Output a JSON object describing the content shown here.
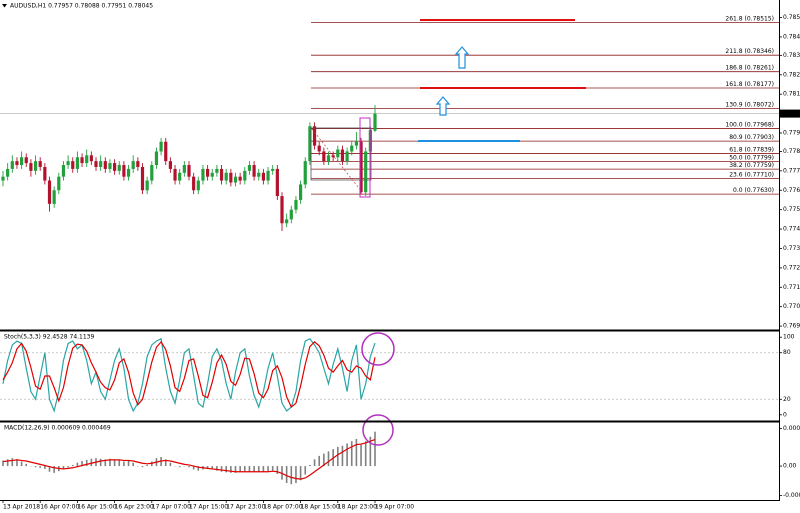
{
  "chart_data": [
    {
      "type": "candlestick",
      "title": "AUDUSD,H1  0.77957 0.78088 0.77951 0.78045",
      "categories": [
        "13 Apr 2018",
        null,
        null,
        null,
        null,
        null,
        null,
        null,
        "16 Apr 07:00",
        null,
        null,
        null,
        null,
        null,
        null,
        null,
        "16 Apr 15:00",
        null,
        null,
        null,
        null,
        null,
        null,
        null,
        "16 Apr 23:00",
        null,
        null,
        null,
        null,
        null,
        null,
        null,
        "17 Apr 07:00",
        null,
        null,
        null,
        null,
        null,
        null,
        null,
        "17 Apr 15:00",
        null,
        null,
        null,
        null,
        null,
        null,
        null,
        "17 Apr 23:00",
        null,
        null,
        null,
        null,
        null,
        null,
        null,
        "18 Apr 07:00",
        null,
        null,
        null,
        null,
        null,
        null,
        null,
        "18 Apr 15:00",
        null,
        null,
        null,
        null,
        null,
        null,
        null,
        "18 Apr 23:00",
        null,
        null,
        null,
        null,
        null,
        null,
        null,
        "19 Apr 07:00"
      ],
      "candles": [
        [
          0.777,
          0.7775,
          0.7767,
          0.7772
        ],
        [
          0.7772,
          0.7779,
          0.777,
          0.7776
        ],
        [
          0.7776,
          0.7783,
          0.7774,
          0.778
        ],
        [
          0.778,
          0.7782,
          0.7776,
          0.7778
        ],
        [
          0.7778,
          0.7785,
          0.7776,
          0.7782
        ],
        [
          0.7782,
          0.7784,
          0.7777,
          0.7779
        ],
        [
          0.7779,
          0.7781,
          0.7772,
          0.7775
        ],
        [
          0.7775,
          0.7783,
          0.7773,
          0.778
        ],
        [
          0.778,
          0.7782,
          0.7775,
          0.7777
        ],
        [
          0.7777,
          0.7779,
          0.7768,
          0.777
        ],
        [
          0.777,
          0.7772,
          0.7754,
          0.7758
        ],
        [
          0.7758,
          0.7767,
          0.7756,
          0.7765
        ],
        [
          0.7765,
          0.7774,
          0.7763,
          0.7772
        ],
        [
          0.7772,
          0.778,
          0.777,
          0.7778
        ],
        [
          0.7778,
          0.7783,
          0.7776,
          0.778
        ],
        [
          0.778,
          0.7782,
          0.7774,
          0.7776
        ],
        [
          0.7776,
          0.7785,
          0.7774,
          0.7782
        ],
        [
          0.7782,
          0.7784,
          0.7777,
          0.7779
        ],
        [
          0.7779,
          0.7786,
          0.7777,
          0.7783
        ],
        [
          0.7783,
          0.7785,
          0.7778,
          0.778
        ],
        [
          0.778,
          0.7782,
          0.7775,
          0.7777
        ],
        [
          0.7777,
          0.7783,
          0.7775,
          0.778
        ],
        [
          0.778,
          0.7782,
          0.7774,
          0.7776
        ],
        [
          0.7776,
          0.7781,
          0.7774,
          0.7779
        ],
        [
          0.7779,
          0.7781,
          0.7773,
          0.7775
        ],
        [
          0.7775,
          0.778,
          0.7773,
          0.7778
        ],
        [
          0.7778,
          0.778,
          0.777,
          0.7772
        ],
        [
          0.7772,
          0.7778,
          0.777,
          0.7776
        ],
        [
          0.7776,
          0.7783,
          0.7774,
          0.778
        ],
        [
          0.778,
          0.7782,
          0.7775,
          0.7777
        ],
        [
          0.7777,
          0.7779,
          0.7763,
          0.7765
        ],
        [
          0.7765,
          0.7772,
          0.7763,
          0.777
        ],
        [
          0.777,
          0.778,
          0.7768,
          0.7778
        ],
        [
          0.7778,
          0.7787,
          0.7776,
          0.7785
        ],
        [
          0.7785,
          0.7792,
          0.7783,
          0.779
        ],
        [
          0.779,
          0.7792,
          0.7778,
          0.778
        ],
        [
          0.778,
          0.7782,
          0.7774,
          0.7776
        ],
        [
          0.7776,
          0.7778,
          0.7768,
          0.777
        ],
        [
          0.777,
          0.7776,
          0.7768,
          0.7774
        ],
        [
          0.7774,
          0.778,
          0.7772,
          0.7778
        ],
        [
          0.7778,
          0.778,
          0.777,
          0.7772
        ],
        [
          0.7772,
          0.7774,
          0.7763,
          0.7765
        ],
        [
          0.7765,
          0.7772,
          0.7763,
          0.777
        ],
        [
          0.777,
          0.7778,
          0.7768,
          0.7776
        ],
        [
          0.7776,
          0.7778,
          0.777,
          0.7772
        ],
        [
          0.7772,
          0.7776,
          0.777,
          0.7774
        ],
        [
          0.7774,
          0.7778,
          0.7772,
          0.7776
        ],
        [
          0.7776,
          0.7778,
          0.7768,
          0.777
        ],
        [
          0.777,
          0.7776,
          0.7768,
          0.7774
        ],
        [
          0.7774,
          0.7776,
          0.7767,
          0.7769
        ],
        [
          0.7769,
          0.7774,
          0.7767,
          0.7772
        ],
        [
          0.7772,
          0.7774,
          0.7768,
          0.777
        ],
        [
          0.777,
          0.7777,
          0.7768,
          0.7775
        ],
        [
          0.7775,
          0.778,
          0.7773,
          0.7778
        ],
        [
          0.7778,
          0.778,
          0.777,
          0.7772
        ],
        [
          0.7772,
          0.7776,
          0.777,
          0.7774
        ],
        [
          0.7774,
          0.7776,
          0.7768,
          0.777
        ],
        [
          0.777,
          0.7777,
          0.7768,
          0.7775
        ],
        [
          0.7775,
          0.7778,
          0.7773,
          0.7776
        ],
        [
          0.7776,
          0.7778,
          0.776,
          0.7762
        ],
        [
          0.7762,
          0.7764,
          0.7744,
          0.7748
        ],
        [
          0.7748,
          0.7753,
          0.7746,
          0.775
        ],
        [
          0.775,
          0.7757,
          0.7748,
          0.7755
        ],
        [
          0.7755,
          0.7762,
          0.7753,
          0.776
        ],
        [
          0.776,
          0.777,
          0.7758,
          0.7768
        ],
        [
          0.7768,
          0.7782,
          0.7766,
          0.778
        ],
        [
          0.778,
          0.78,
          0.7778,
          0.7798
        ],
        [
          0.7798,
          0.78,
          0.7786,
          0.7788
        ],
        [
          0.7788,
          0.779,
          0.7783,
          0.7785
        ],
        [
          0.7785,
          0.7787,
          0.7778,
          0.778
        ],
        [
          0.778,
          0.7785,
          0.7778,
          0.7783
        ],
        [
          0.7783,
          0.7785,
          0.778,
          0.7782
        ],
        [
          0.7782,
          0.7788,
          0.778,
          0.7786
        ],
        [
          0.7786,
          0.7788,
          0.7778,
          0.778
        ],
        [
          0.778,
          0.7787,
          0.7778,
          0.7785
        ],
        [
          0.7785,
          0.779,
          0.7783,
          0.7788
        ],
        [
          0.7788,
          0.7795,
          0.7786,
          0.779
        ],
        [
          0.779,
          0.7792,
          0.7763,
          0.7764
        ],
        [
          0.7764,
          0.7787,
          0.7762,
          0.7785
        ],
        [
          0.7785,
          0.7798,
          0.7783,
          0.7796
        ],
        [
          0.77957,
          0.78088,
          0.77951,
          0.78045
        ]
      ],
      "up_color": "#22a03c",
      "down_color": "#b3122c",
      "ylim": [
        0.7693,
        0.7862
      ],
      "yticks": [
        {
          "value": 0.7854,
          "label": "0.78540"
        },
        {
          "value": 0.7844,
          "label": "0.78440"
        },
        0.78345,
        0.78245,
        0.78145,
        0.77945,
        {
          "value": 0.7785,
          "label": "0.77850"
        },
        {
          "value": 0.7775,
          "label": "0.77750"
        },
        {
          "value": 0.7765,
          "label": "0.77650"
        },
        {
          "value": 0.7755,
          "label": "0.77550"
        },
        {
          "value": 0.7745,
          "label": "0.77450"
        },
        {
          "value": 0.7735,
          "label": "0.77350"
        },
        {
          "value": 0.7725,
          "label": "0.77250"
        },
        {
          "value": 0.7715,
          "label": "0.77150"
        },
        {
          "value": 0.7705,
          "label": "0.77050"
        },
        {
          "value": 0.7695,
          "label": "0.76950"
        }
      ],
      "current_price": 0.78045,
      "fib_color": "#8b1a1a",
      "fib_levels": [
        {
          "label": "261.8 (0.78515)",
          "value": 0.78515
        },
        {
          "label": "211.8 (0.78346)",
          "value": 0.78346
        },
        {
          "label": "186.8 (0.78261)",
          "value": 0.78261
        },
        {
          "label": "161.8 (0.78177)",
          "value": 0.78177
        },
        {
          "label": "130.9 (0.78072)",
          "value": 0.78072
        },
        {
          "label": "100.0 (0.77968)",
          "value": 0.77968
        },
        {
          "label": "80.9 (0.77903)",
          "value": 0.77903
        },
        {
          "label": "61.8 (0.77839)",
          "value": 0.77839
        },
        {
          "label": "50.0 (0.77799)",
          "value": 0.77799
        },
        {
          "label": "38.2 (0.77759)",
          "value": 0.77759
        },
        {
          "label": "23.6 (0.77710)",
          "value": 0.7771
        },
        {
          "label": "0.0 (0.77630)",
          "value": 0.7763
        }
      ]
    },
    {
      "type": "stochastic",
      "title": "Stoch(5,3,3) 92.4528 74.1139",
      "ylim": [
        -8,
        108
      ],
      "yticks": [
        100,
        80,
        20,
        0
      ],
      "levels": [
        80,
        20
      ],
      "series": [
        {
          "color": "#2aa5a5",
          "values": [
            40,
            70,
            90,
            95,
            92,
            60,
            30,
            20,
            50,
            80,
            20,
            5,
            30,
            70,
            92,
            95,
            85,
            90,
            70,
            40,
            55,
            30,
            20,
            45,
            70,
            85,
            60,
            20,
            5,
            15,
            40,
            75,
            90,
            95,
            98,
            60,
            30,
            15,
            45,
            80,
            85,
            50,
            15,
            10,
            40,
            75,
            85,
            70,
            40,
            20,
            55,
            80,
            85,
            50,
            25,
            10,
            30,
            60,
            80,
            50,
            15,
            5,
            10,
            30,
            70,
            95,
            98,
            90,
            80,
            60,
            40,
            65,
            85,
            60,
            30,
            70,
            90,
            20,
            40,
            75,
            92.4528
          ]
        },
        {
          "color": "#e00000",
          "values": [
            45,
            55,
            67,
            85,
            92,
            82,
            61,
            37,
            33,
            50,
            50,
            35,
            18,
            35,
            64,
            86,
            91,
            90,
            82,
            67,
            55,
            42,
            35,
            32,
            45,
            67,
            72,
            55,
            28,
            13,
            20,
            43,
            68,
            87,
            94,
            84,
            63,
            35,
            30,
            47,
            70,
            72,
            50,
            25,
            22,
            42,
            67,
            77,
            65,
            43,
            38,
            52,
            73,
            72,
            53,
            28,
            22,
            33,
            57,
            63,
            48,
            23,
            10,
            15,
            37,
            65,
            88,
            94,
            89,
            77,
            60,
            55,
            63,
            70,
            58,
            55,
            63,
            60,
            50,
            45,
            74.1139
          ]
        }
      ]
    },
    {
      "type": "macd",
      "title": "MACD(12,26,9) 0.000609 0.000469",
      "ylim": [
        -0.0006,
        0.00078
      ],
      "yticks": [
        0.000663,
        {
          "value": 0,
          "label": "0.00"
        },
        -0.000519
      ],
      "histogram": {
        "color": "#808080",
        "values": [
          0.0001,
          0.00012,
          0.00014,
          0.00012,
          8e-05,
          4e-05,
          0,
          -2e-05,
          -3e-05,
          -5e-05,
          -0.0001,
          -0.00012,
          -9e-05,
          -6e-05,
          -2e-05,
          2e-05,
          6e-05,
          9e-05,
          0.00011,
          0.00013,
          0.00014,
          0.00013,
          0.00012,
          0.00013,
          0.00012,
          0.0001,
          8e-05,
          9e-05,
          6e-05,
          0,
          -2e-05,
          2e-05,
          8e-05,
          0.00014,
          0.00016,
          0.00012,
          6e-05,
          0,
          -2e-05,
          0,
          -2e-05,
          -6e-05,
          -8e-05,
          -6e-05,
          -5e-05,
          -6e-05,
          -8e-05,
          -0.0001,
          -0.00011,
          -0.00012,
          -0.00012,
          -0.00011,
          -9e-05,
          -0.0001,
          -0.0001,
          -0.00011,
          -0.0001,
          -9e-05,
          -8e-05,
          -0.00014,
          -0.00024,
          -0.0003,
          -0.00032,
          -0.0003,
          -0.00025,
          -0.00015,
          2e-05,
          0.00012,
          0.00018,
          0.00022,
          0.00026,
          0.0003,
          0.00034,
          0.00036,
          0.0004,
          0.00044,
          0.00048,
          0.00038,
          0.00044,
          0.00052,
          0.000609
        ]
      },
      "signal": {
        "color": "#e00000",
        "values": [
          8e-05,
          9e-05,
          0.0001,
          0.00011,
          0.0001,
          9e-05,
          7e-05,
          5e-05,
          3e-05,
          1e-05,
          -1e-05,
          -3e-05,
          -4e-05,
          -5e-05,
          -4e-05,
          -3e-05,
          -1e-05,
          1e-05,
          3e-05,
          5e-05,
          7e-05,
          9e-05,
          0.0001,
          0.00011,
          0.00011,
          0.00011,
          0.0001,
          0.0001,
          9e-05,
          7e-05,
          5e-05,
          4e-05,
          5e-05,
          7e-05,
          9e-05,
          0.0001,
          9e-05,
          7e-05,
          5e-05,
          3e-05,
          2e-05,
          0,
          -2e-05,
          -3e-05,
          -4e-05,
          -5e-05,
          -6e-05,
          -7e-05,
          -8e-05,
          -9e-05,
          -0.0001,
          -0.0001,
          -0.0001,
          -0.0001,
          -0.0001,
          -0.0001,
          -0.0001,
          -0.0001,
          -9e-05,
          -0.0001,
          -0.00013,
          -0.00017,
          -0.0002,
          -0.00022,
          -0.00023,
          -0.00021,
          -0.00016,
          -0.0001,
          -4e-05,
          2e-05,
          8e-05,
          0.00014,
          0.0002,
          0.00025,
          0.0003,
          0.00034,
          0.00038,
          0.00039,
          0.00041,
          0.00044,
          0.000469
        ]
      }
    }
  ]
}
